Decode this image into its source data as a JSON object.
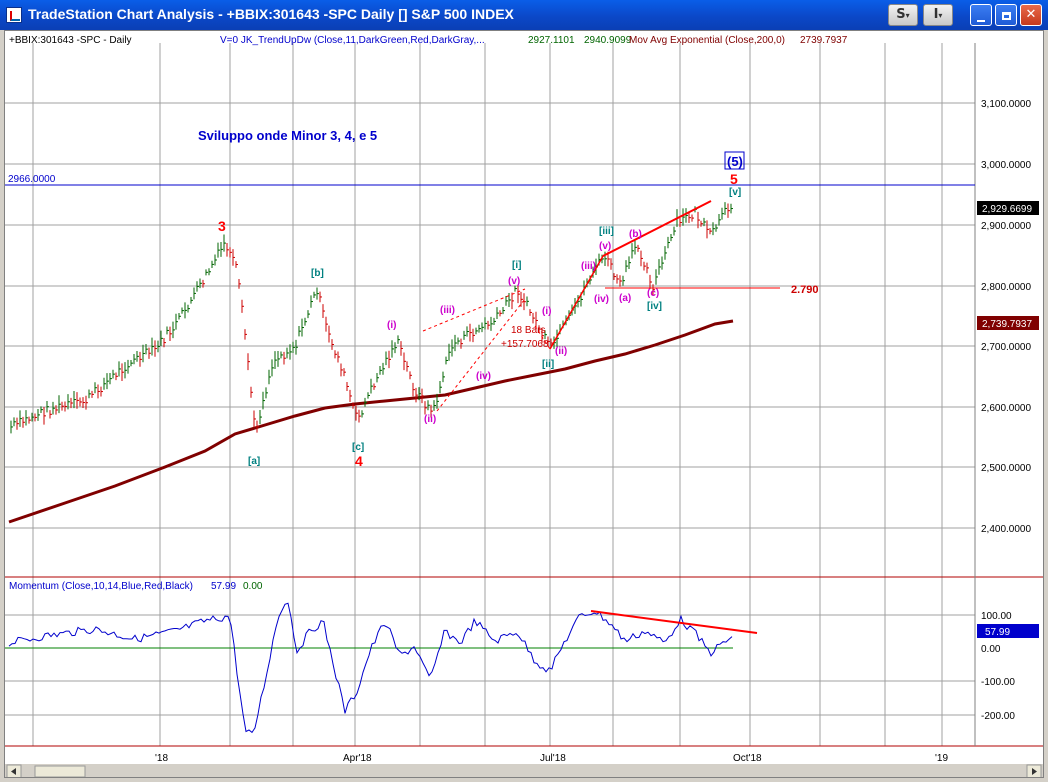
{
  "window": {
    "title": "TradeStation Chart Analysis - +BBIX:301643 -SPC Daily [] S&P 500 INDEX",
    "buttons": {
      "s_label": "S",
      "i_label": "I"
    }
  },
  "colors": {
    "title_bar": "#0b48c8",
    "chart_bg": "#ffffff",
    "price_up": "#006400",
    "price_down": "#cc0000",
    "ema": "#800000",
    "momentum": "#0000cc",
    "trendline": "#ff0000",
    "label_blue": "#0000cc",
    "label_red": "#ff0000",
    "label_teal": "#008080",
    "label_magenta": "#cc00cc"
  },
  "chart": {
    "symbol_label": "+BBIX:301643 -SPC - Daily",
    "indicator1": "V=0  JK_TrendUpDw (Close,11,DarkGreen,Red,DarkGray,...",
    "indicator1_v1": "2927.1101",
    "indicator1_v2": "2940.9099",
    "indicator2": "Mov Avg Exponential (Close,200,0)",
    "indicator2_value": "2739.7937",
    "annotation_title": "Sviluppo onde Minor 3, 4, e 5",
    "hline_label": "2966.0000",
    "support_label": "2.790",
    "bars_label": "18 Bars",
    "change_label": "+157.7068",
    "last_price_tag": "2,929.6699",
    "ema_price_tag": "2,739.7937",
    "momentum_tag": "57.99",
    "momentum_label": "Momentum (Close,10,14,Blue,Red,Black)",
    "momentum_value": "57.99",
    "momentum_zero": "0.00",
    "price_axis": [
      "3,100.0000",
      "3,000.0000",
      "2,900.0000",
      "2,800.0000",
      "2,700.0000",
      "2,600.0000",
      "2,500.0000",
      "2,400.0000"
    ],
    "momentum_axis": [
      "100.00",
      "0.00",
      "-100.00",
      "-200.00"
    ],
    "time_axis": [
      "'18",
      "Apr'18",
      "Jul'18",
      "Oct'18",
      "'19"
    ],
    "wave_labels": {
      "w3": "3",
      "wa": "[a]",
      "wb": "[b]",
      "wc": "[c]",
      "w4": "4",
      "i1": "(i)",
      "ii1": "(ii)",
      "iii1": "(iii)",
      "iv1": "(iv)",
      "v1": "(v)",
      "wi": "[i]",
      "wii": "[ii]",
      "wiii": "[iii]",
      "wiv": "[iv]",
      "wv": "[v]",
      "i2": "(i)",
      "ii2": "(ii)",
      "iii2": "(iii)",
      "iv2": "(iv)",
      "v2": "(v)",
      "a": "(a)",
      "b": "(b)",
      "c": "(c)",
      "w5": "5",
      "w5c": "(5)"
    }
  }
}
